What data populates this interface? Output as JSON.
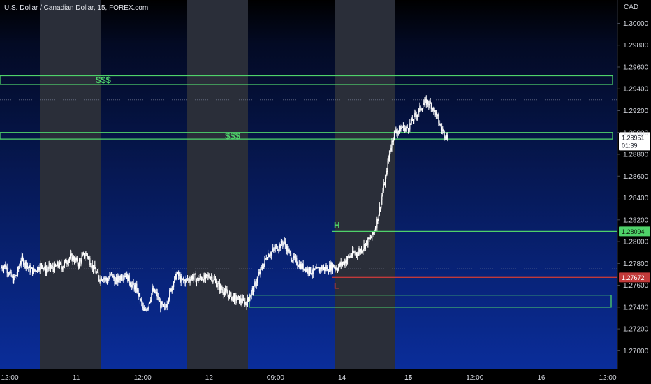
{
  "header": {
    "title": "U.S. Dollar / Canadian Dollar, 15, FOREX.com",
    "currency": "CAD"
  },
  "colors": {
    "background_top": "#000000",
    "background_bottom": "#0a2d9a",
    "session_shade": "#2a2e39",
    "zone": "#4fd26a",
    "high_line": "#4fd26a",
    "low_line": "#c23a3a",
    "candle": "#ffffff",
    "current_price_badge": "#ffffff"
  },
  "chart_data": {
    "type": "candlestick",
    "y_axis": {
      "ticks": [
        "1.30000",
        "1.29800",
        "1.29600",
        "1.29400",
        "1.29200",
        "1.29000",
        "1.28800",
        "1.28600",
        "1.28400",
        "1.28200",
        "1.28000",
        "1.27800",
        "1.27600",
        "1.27400",
        "1.27200",
        "1.27000"
      ],
      "ylim": [
        1.269,
        1.3015
      ]
    },
    "x_axis": {
      "ticks": [
        {
          "label": "12:00",
          "bold": false
        },
        {
          "label": "11",
          "bold": false
        },
        {
          "label": "12:00",
          "bold": false
        },
        {
          "label": "12",
          "bold": false
        },
        {
          "label": "09:00",
          "bold": false
        },
        {
          "label": "14",
          "bold": false
        },
        {
          "label": "15",
          "bold": true
        },
        {
          "label": "12:00",
          "bold": false
        },
        {
          "label": "16",
          "bold": false
        },
        {
          "label": "12:00",
          "bold": false
        }
      ]
    },
    "levels": {
      "high": {
        "label": "H",
        "price": 1.28094,
        "badge": "1.28094"
      },
      "low": {
        "label": "L",
        "price": 1.27672,
        "badge": "1.27672"
      },
      "current": {
        "price": 1.28951,
        "badge": "1.28951",
        "countdown": "01:39"
      }
    },
    "zones": [
      {
        "label": "$$$",
        "top": 1.2952,
        "bottom": 1.2944
      },
      {
        "label": "$$$",
        "top": 1.29,
        "bottom": 1.2894
      },
      {
        "label": "",
        "top": 1.2751,
        "bottom": 1.274
      }
    ],
    "price_path": [
      1.2776,
      1.2778,
      1.2772,
      1.2765,
      1.277,
      1.2784,
      1.278,
      1.2775,
      1.2773,
      1.2776,
      1.2779,
      1.2774,
      1.2777,
      1.2775,
      1.2779,
      1.2777,
      1.2782,
      1.2786,
      1.2784,
      1.278,
      1.2786,
      1.2789,
      1.278,
      1.2774,
      1.2766,
      1.2768,
      1.2764,
      1.277,
      1.2763,
      1.2767,
      1.277,
      1.2767,
      1.276,
      1.2758,
      1.2748,
      1.2735,
      1.2742,
      1.2755,
      1.2752,
      1.2742,
      1.2738,
      1.275,
      1.2762,
      1.277,
      1.2765,
      1.2764,
      1.2766,
      1.2768,
      1.2765,
      1.2767,
      1.2766,
      1.2769,
      1.2765,
      1.276,
      1.2756,
      1.2753,
      1.275,
      1.2748,
      1.2747,
      1.2745,
      1.2744,
      1.2752,
      1.276,
      1.277,
      1.2778,
      1.2788,
      1.279,
      1.2794,
      1.2796,
      1.28,
      1.2792,
      1.2785,
      1.2782,
      1.2778,
      1.2776,
      1.2774,
      1.2772,
      1.2773,
      1.2776,
      1.2775,
      1.2776,
      1.2778,
      1.2776,
      1.2779,
      1.2782,
      1.2786,
      1.2789,
      1.279,
      1.2793,
      1.2798,
      1.2802,
      1.2808,
      1.2822,
      1.2842,
      1.2862,
      1.2885,
      1.29,
      1.2902,
      1.2905,
      1.2903,
      1.2908,
      1.2915,
      1.292,
      1.2926,
      1.2928,
      1.2925,
      1.2918,
      1.2908,
      1.29,
      1.2895
    ]
  }
}
